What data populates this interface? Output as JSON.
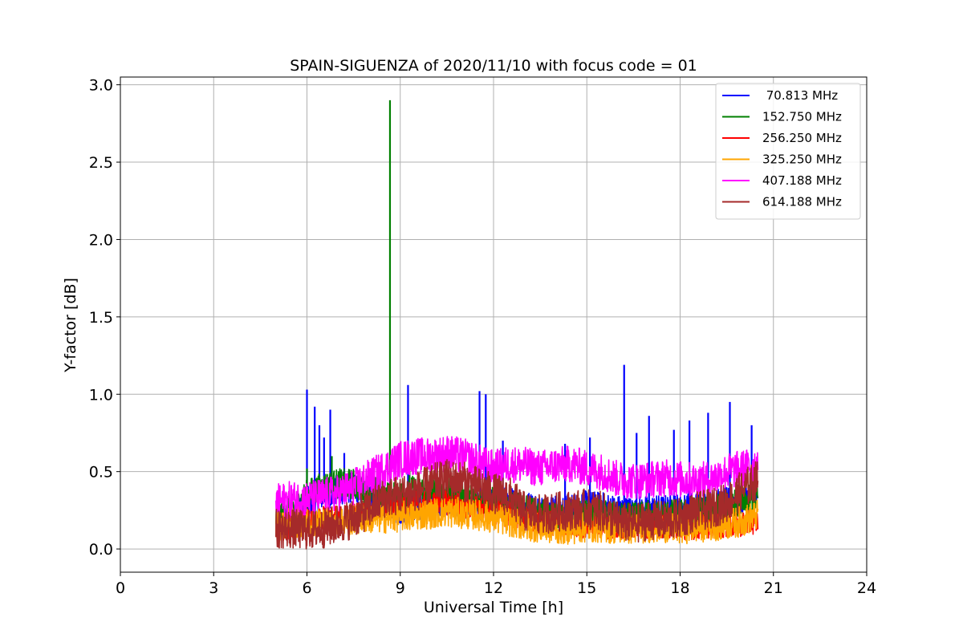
{
  "chart_data": {
    "type": "line",
    "title": "SPAIN-SIGUENZA of 2020/11/10 with focus code = 01",
    "xlabel": "Universal Time [h]",
    "ylabel": "Y-factor [dB]",
    "xlim": [
      0,
      24
    ],
    "ylim": [
      -0.15,
      3.05
    ],
    "xticks": [
      0,
      3,
      6,
      9,
      12,
      15,
      18,
      21,
      24
    ],
    "yticks": [
      0.0,
      0.5,
      1.0,
      1.5,
      2.0,
      2.5,
      3.0
    ],
    "xtick_labels": [
      "0",
      "3",
      "6",
      "9",
      "12",
      "15",
      "18",
      "21",
      "24"
    ],
    "ytick_labels": [
      "0.0",
      "0.5",
      "1.0",
      "1.5",
      "2.0",
      "2.5",
      "3.0"
    ],
    "grid": true,
    "legend_position": "top-right",
    "data_range_x": [
      5.0,
      20.5
    ],
    "series": [
      {
        "name": " 70.813 MHz",
        "color": "#0000ff",
        "x": [
          5.0,
          5.5,
          6.0,
          6.5,
          7.0,
          7.5,
          8.0,
          8.5,
          9.0,
          9.5,
          10.0,
          10.5,
          11.0,
          11.5,
          12.0,
          12.5,
          13.0,
          13.5,
          14.0,
          14.5,
          15.0,
          15.5,
          16.0,
          16.5,
          17.0,
          17.5,
          18.0,
          18.5,
          19.0,
          19.5,
          20.0,
          20.5
        ],
        "y": [
          0.15,
          0.2,
          0.3,
          0.35,
          0.38,
          0.4,
          0.35,
          0.3,
          0.25,
          0.28,
          0.3,
          0.32,
          0.3,
          0.28,
          0.3,
          0.3,
          0.28,
          0.25,
          0.25,
          0.26,
          0.28,
          0.27,
          0.25,
          0.24,
          0.25,
          0.25,
          0.26,
          0.27,
          0.28,
          0.3,
          0.32,
          0.35
        ],
        "spikes": [
          [
            6.0,
            1.03
          ],
          [
            6.25,
            0.92
          ],
          [
            6.4,
            0.8
          ],
          [
            6.55,
            0.72
          ],
          [
            6.75,
            0.9
          ],
          [
            7.2,
            0.62
          ],
          [
            9.25,
            1.06
          ],
          [
            11.55,
            1.02
          ],
          [
            11.75,
            1.0
          ],
          [
            12.3,
            0.7
          ],
          [
            14.3,
            0.68
          ],
          [
            15.1,
            0.72
          ],
          [
            16.2,
            1.19
          ],
          [
            16.6,
            0.75
          ],
          [
            17.0,
            0.86
          ],
          [
            17.8,
            0.77
          ],
          [
            18.3,
            0.83
          ],
          [
            18.9,
            0.88
          ],
          [
            19.6,
            0.95
          ],
          [
            20.3,
            0.8
          ]
        ]
      },
      {
        "name": "152.750 MHz",
        "color": "#008000",
        "x": [
          5.0,
          5.5,
          6.0,
          6.5,
          7.0,
          7.5,
          8.0,
          8.5,
          9.0,
          9.5,
          10.0,
          10.5,
          11.0,
          11.5,
          12.0,
          12.5,
          13.0,
          13.5,
          14.0,
          14.5,
          15.0,
          15.5,
          16.0,
          16.5,
          17.0,
          17.5,
          18.0,
          18.5,
          19.0,
          19.5,
          20.0,
          20.5
        ],
        "y": [
          0.2,
          0.25,
          0.35,
          0.4,
          0.42,
          0.42,
          0.38,
          0.35,
          0.35,
          0.38,
          0.38,
          0.38,
          0.35,
          0.32,
          0.3,
          0.28,
          0.25,
          0.22,
          0.2,
          0.2,
          0.22,
          0.22,
          0.2,
          0.2,
          0.22,
          0.22,
          0.22,
          0.24,
          0.25,
          0.27,
          0.3,
          0.33
        ],
        "spikes": [
          [
            6.0,
            0.52
          ],
          [
            6.8,
            0.6
          ],
          [
            8.67,
            2.9
          ],
          [
            9.3,
            0.52
          ]
        ]
      },
      {
        "name": "256.250 MHz",
        "color": "#ff0000",
        "x": [
          5.0,
          5.5,
          6.0,
          6.5,
          7.0,
          7.5,
          8.0,
          8.5,
          9.0,
          9.5,
          10.0,
          10.5,
          11.0,
          11.5,
          12.0,
          12.5,
          13.0,
          13.5,
          14.0,
          14.5,
          15.0,
          15.5,
          16.0,
          16.5,
          17.0,
          17.5,
          18.0,
          18.5,
          19.0,
          19.5,
          20.0,
          20.5
        ],
        "y": [
          0.12,
          0.15,
          0.18,
          0.2,
          0.2,
          0.22,
          0.24,
          0.26,
          0.28,
          0.3,
          0.3,
          0.3,
          0.28,
          0.26,
          0.24,
          0.22,
          0.2,
          0.18,
          0.16,
          0.15,
          0.15,
          0.15,
          0.14,
          0.14,
          0.15,
          0.15,
          0.14,
          0.14,
          0.15,
          0.15,
          0.16,
          0.18
        ],
        "spikes": []
      },
      {
        "name": "325.250 MHz",
        "color": "#ffa500",
        "x": [
          5.0,
          5.5,
          6.0,
          6.5,
          7.0,
          7.5,
          8.0,
          8.5,
          9.0,
          9.5,
          10.0,
          10.5,
          11.0,
          11.5,
          12.0,
          12.5,
          13.0,
          13.5,
          14.0,
          14.5,
          15.0,
          15.5,
          16.0,
          16.5,
          17.0,
          17.5,
          18.0,
          18.5,
          19.0,
          19.5,
          20.0,
          20.5
        ],
        "y": [
          0.15,
          0.17,
          0.18,
          0.18,
          0.18,
          0.19,
          0.2,
          0.2,
          0.21,
          0.22,
          0.23,
          0.24,
          0.23,
          0.22,
          0.2,
          0.18,
          0.15,
          0.14,
          0.13,
          0.13,
          0.14,
          0.14,
          0.13,
          0.13,
          0.14,
          0.14,
          0.13,
          0.14,
          0.15,
          0.16,
          0.18,
          0.22
        ],
        "spikes": []
      },
      {
        "name": "407.188 MHz",
        "color": "#ff00ff",
        "x": [
          5.0,
          5.5,
          6.0,
          6.5,
          7.0,
          7.5,
          8.0,
          8.5,
          9.0,
          9.5,
          10.0,
          10.5,
          11.0,
          11.5,
          12.0,
          12.5,
          13.0,
          13.5,
          14.0,
          14.5,
          15.0,
          15.5,
          16.0,
          16.5,
          17.0,
          17.5,
          18.0,
          18.5,
          19.0,
          19.5,
          20.0,
          20.5
        ],
        "y": [
          0.3,
          0.32,
          0.32,
          0.34,
          0.36,
          0.4,
          0.46,
          0.52,
          0.58,
          0.6,
          0.6,
          0.62,
          0.6,
          0.56,
          0.52,
          0.55,
          0.54,
          0.52,
          0.54,
          0.55,
          0.52,
          0.5,
          0.45,
          0.44,
          0.45,
          0.46,
          0.45,
          0.44,
          0.45,
          0.5,
          0.52,
          0.55
        ],
        "spikes": []
      },
      {
        "name": "614.188 MHz",
        "color": "#a52a2a",
        "x": [
          5.0,
          5.5,
          6.0,
          6.5,
          7.0,
          7.5,
          8.0,
          8.5,
          9.0,
          9.5,
          10.0,
          10.5,
          11.0,
          11.5,
          12.0,
          12.5,
          13.0,
          13.5,
          14.0,
          14.5,
          15.0,
          15.5,
          16.0,
          16.5,
          17.0,
          17.5,
          18.0,
          18.5,
          19.0,
          19.5,
          20.0,
          20.5
        ],
        "y": [
          0.13,
          0.13,
          0.12,
          0.13,
          0.16,
          0.2,
          0.26,
          0.33,
          0.35,
          0.37,
          0.42,
          0.45,
          0.44,
          0.4,
          0.36,
          0.34,
          0.24,
          0.22,
          0.24,
          0.25,
          0.26,
          0.24,
          0.18,
          0.16,
          0.19,
          0.18,
          0.2,
          0.24,
          0.26,
          0.3,
          0.38,
          0.45
        ],
        "spikes": []
      }
    ]
  }
}
